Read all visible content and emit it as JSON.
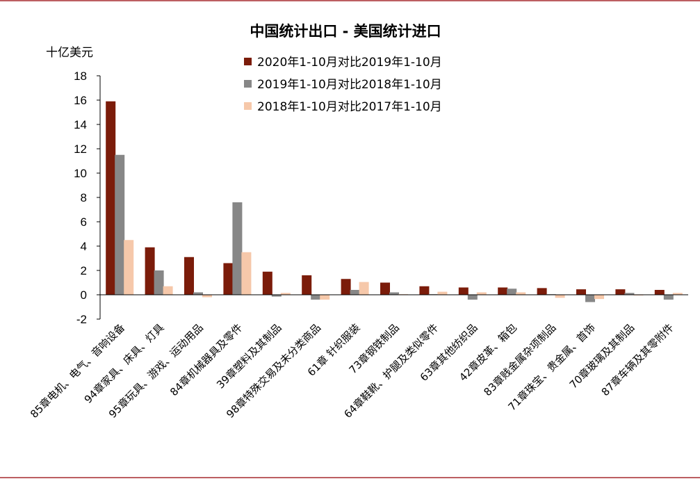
{
  "chart_data": {
    "type": "bar",
    "title": "中国统计出口 - 美国统计进口",
    "unit_label": "十亿美元",
    "ylim": [
      -2,
      18
    ],
    "yticks": [
      -2,
      0,
      2,
      4,
      6,
      8,
      10,
      12,
      14,
      16,
      18
    ],
    "grid": false,
    "legend_position": "top-right",
    "categories": [
      "85章电机、电气、音响设备",
      "94章家具、床具、灯具",
      "95章玩具、游戏、运动用品",
      "84章机械器具及零件",
      "39章塑料及其制品",
      "98章特殊交易及未分类商品",
      "61章 针织服装",
      "73章钢铁制品",
      "64章鞋靴、护腿及类似零件",
      "63章其他纺织品",
      "42章皮革、箱包",
      "83章贱金属杂项制品",
      "71章珠宝、贵金属、首饰",
      "70章玻璃及其制品",
      "87章车辆及其零附件"
    ],
    "series": [
      {
        "name": "2020年1-10月对比2019年1-10月",
        "color": "#7b1c0a",
        "values": [
          15.9,
          3.9,
          3.1,
          2.6,
          1.9,
          1.6,
          1.3,
          1.0,
          0.7,
          0.6,
          0.6,
          0.55,
          0.45,
          0.45,
          0.4
        ]
      },
      {
        "name": "2019年1-10月对比2018年1-10月",
        "color": "#878787",
        "values": [
          11.5,
          2.0,
          0.2,
          7.6,
          -0.15,
          -0.4,
          0.4,
          0.2,
          0.05,
          -0.4,
          0.5,
          0.05,
          -0.6,
          0.15,
          -0.4
        ]
      },
      {
        "name": "2018年1-10月对比2017年1-10月",
        "color": "#f6c8aa",
        "values": [
          4.5,
          0.7,
          -0.2,
          3.5,
          0.15,
          -0.4,
          1.05,
          0.05,
          0.25,
          0.2,
          0.2,
          -0.25,
          -0.35,
          -0.05,
          0.15
        ]
      }
    ]
  }
}
